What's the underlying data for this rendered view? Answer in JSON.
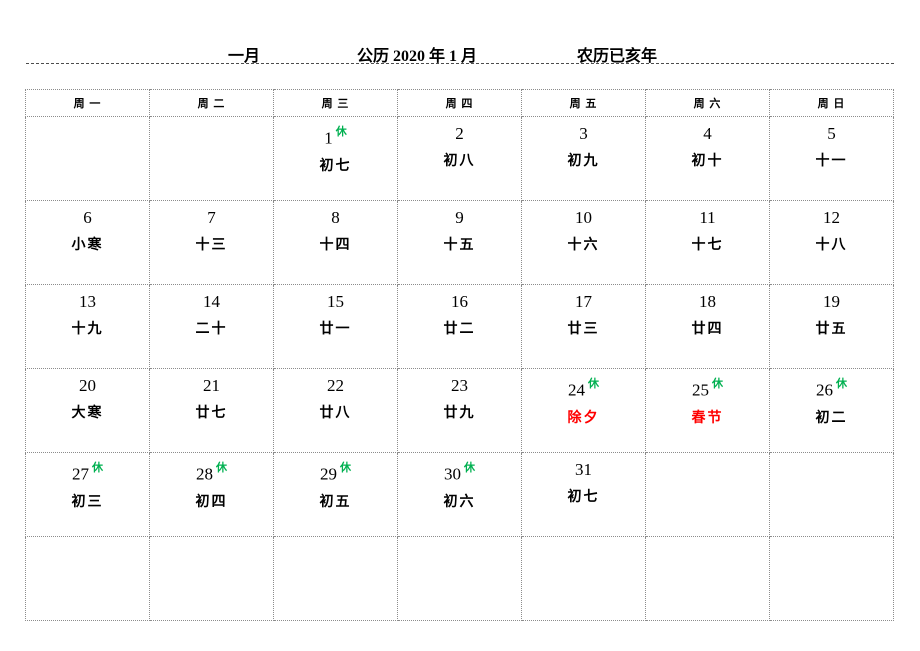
{
  "page": {
    "title_month": "一月",
    "title_gregorian": "公历 2020 年 1 月",
    "title_lunar": "农历已亥年"
  },
  "calendar": {
    "weekday_headers": [
      "周 一",
      "周 二",
      "周 三",
      "周 四",
      "周 五",
      "周 六",
      "周 日"
    ],
    "holiday_badge": "休",
    "colors": {
      "holiday_badge": "#00B050",
      "festival_text": "#FF0000",
      "default_text": "#000000"
    },
    "weeks": [
      [
        {
          "day": "",
          "lunar": ""
        },
        {
          "day": "",
          "lunar": ""
        },
        {
          "day": "1",
          "lunar": "初七",
          "rest": true
        },
        {
          "day": "2",
          "lunar": "初八"
        },
        {
          "day": "3",
          "lunar": "初九"
        },
        {
          "day": "4",
          "lunar": "初十"
        },
        {
          "day": "5",
          "lunar": "十一"
        }
      ],
      [
        {
          "day": "6",
          "lunar": "小寒"
        },
        {
          "day": "7",
          "lunar": "十三"
        },
        {
          "day": "8",
          "lunar": "十四"
        },
        {
          "day": "9",
          "lunar": "十五"
        },
        {
          "day": "10",
          "lunar": "十六"
        },
        {
          "day": "11",
          "lunar": "十七"
        },
        {
          "day": "12",
          "lunar": "十八"
        }
      ],
      [
        {
          "day": "13",
          "lunar": "十九"
        },
        {
          "day": "14",
          "lunar": "二十"
        },
        {
          "day": "15",
          "lunar": "廿一"
        },
        {
          "day": "16",
          "lunar": "廿二"
        },
        {
          "day": "17",
          "lunar": "廿三"
        },
        {
          "day": "18",
          "lunar": "廿四"
        },
        {
          "day": "19",
          "lunar": "廿五"
        }
      ],
      [
        {
          "day": "20",
          "lunar": "大寒"
        },
        {
          "day": "21",
          "lunar": "廿七"
        },
        {
          "day": "22",
          "lunar": "廿八"
        },
        {
          "day": "23",
          "lunar": "廿九"
        },
        {
          "day": "24",
          "lunar": "除夕",
          "rest": true,
          "festival": true
        },
        {
          "day": "25",
          "lunar": "春节",
          "rest": true,
          "festival": true
        },
        {
          "day": "26",
          "lunar": "初二",
          "rest": true
        }
      ],
      [
        {
          "day": "27",
          "lunar": "初三",
          "rest": true
        },
        {
          "day": "28",
          "lunar": "初四",
          "rest": true
        },
        {
          "day": "29",
          "lunar": "初五",
          "rest": true
        },
        {
          "day": "30",
          "lunar": "初六",
          "rest": true
        },
        {
          "day": "31",
          "lunar": "初七"
        },
        {
          "day": "",
          "lunar": ""
        },
        {
          "day": "",
          "lunar": ""
        }
      ],
      [
        {
          "day": "",
          "lunar": ""
        },
        {
          "day": "",
          "lunar": ""
        },
        {
          "day": "",
          "lunar": ""
        },
        {
          "day": "",
          "lunar": ""
        },
        {
          "day": "",
          "lunar": ""
        },
        {
          "day": "",
          "lunar": ""
        },
        {
          "day": "",
          "lunar": ""
        }
      ]
    ]
  }
}
